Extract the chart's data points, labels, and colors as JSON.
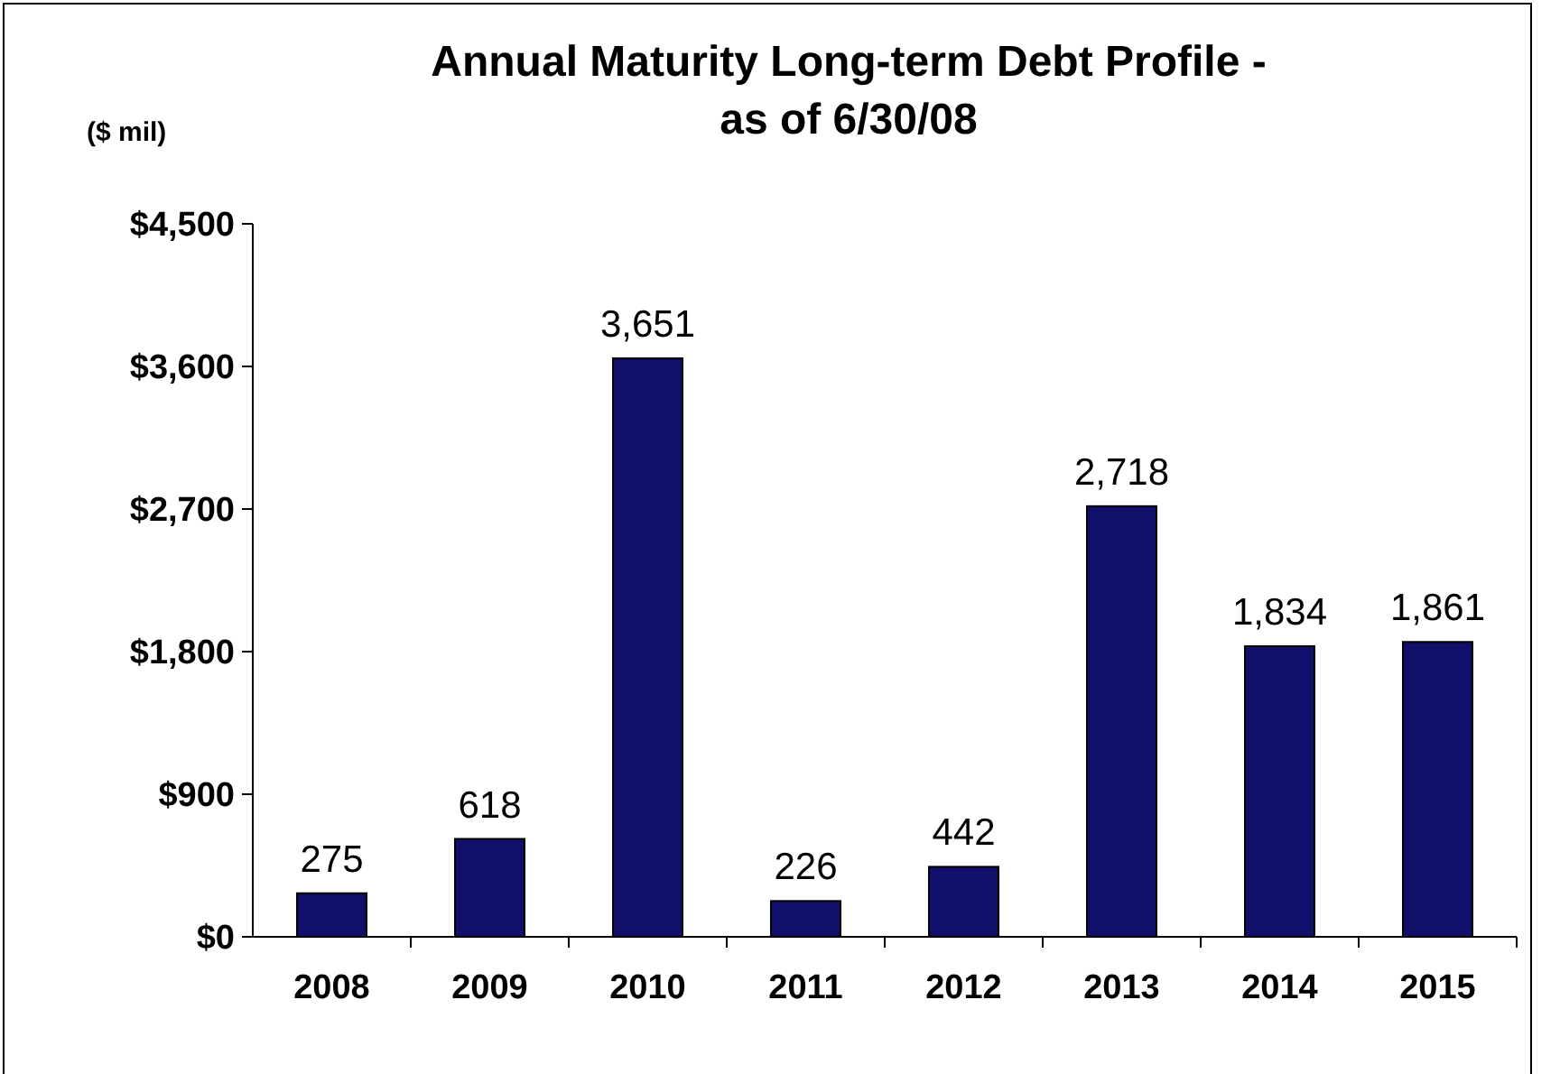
{
  "chart_data": {
    "type": "bar",
    "title": "Annual Maturity Long-term Debt Profile - as of 6/30/08",
    "ylabel": "($ mil)",
    "categories": [
      "2008",
      "2009",
      "2010",
      "2011",
      "2012",
      "2013",
      "2014",
      "2015"
    ],
    "values": [
      275,
      618,
      3651,
      226,
      442,
      2718,
      1834,
      1861
    ],
    "color": "#10106a",
    "ylim": [
      0,
      4500
    ],
    "yticks": [
      {
        "value": 0,
        "label": "$0"
      },
      {
        "value": 900,
        "label": "$900"
      },
      {
        "value": 1800,
        "label": "$1,800"
      },
      {
        "value": 2700,
        "label": "$2,700"
      },
      {
        "value": 3600,
        "label": "$3,600"
      },
      {
        "value": 4500,
        "label": "$4,500"
      }
    ],
    "value_labels": [
      "275",
      "618",
      "3,651",
      "226",
      "442",
      "2,718",
      "1,834",
      "1,861"
    ],
    "grid": false
  }
}
